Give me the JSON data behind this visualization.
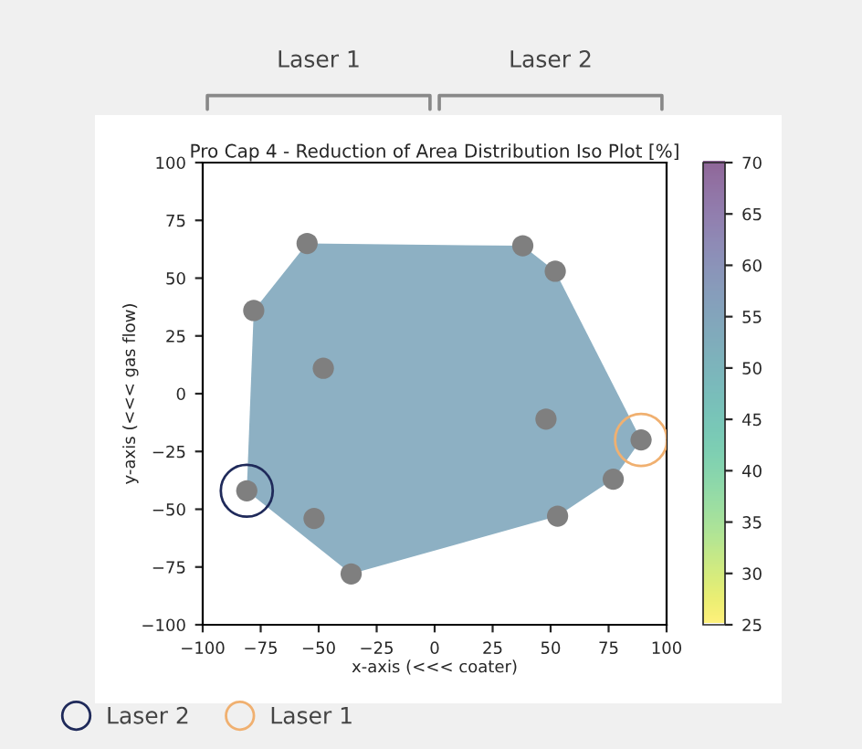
{
  "chart_data": {
    "type": "scatter",
    "title": "Pro Cap 4 - Reduction of Area Distribution Iso Plot [%]",
    "xlabel": "x-axis (<<< coater)",
    "ylabel": "y-axis (<<< gas flow)",
    "xlim": [
      -100,
      100
    ],
    "ylim": [
      -100,
      100
    ],
    "xticks": [
      -100,
      -75,
      -50,
      -25,
      0,
      25,
      50,
      75,
      100
    ],
    "yticks": [
      -100,
      -75,
      -50,
      -25,
      0,
      25,
      50,
      75,
      100
    ],
    "clim": [
      25,
      70
    ],
    "cticks": [
      25,
      30,
      35,
      40,
      45,
      50,
      55,
      60,
      65,
      70
    ],
    "grid": false,
    "legend": "bottom left",
    "annotations": [
      "Laser 1",
      "Laser 2"
    ],
    "series": [
      {
        "type": "area",
        "color": "#8db0c3",
        "x": [
          -55,
          38,
          52,
          89,
          77,
          53,
          -36,
          -81,
          -78
        ],
        "values": [
          65,
          64,
          53,
          -20,
          -37,
          -53,
          -78,
          -42,
          36
        ]
      },
      {
        "color": "#7f7f7f",
        "marker": "circle",
        "x": [
          -55,
          38,
          52,
          -78,
          -48,
          48,
          89,
          77,
          53,
          -81,
          -52,
          -36
        ],
        "values": [
          65,
          64,
          53,
          36,
          11,
          -11,
          -20,
          -37,
          -53,
          -42,
          -54,
          -78
        ]
      },
      {
        "name": "Laser 2",
        "color": "#1f2a5a",
        "marker": "circle",
        "x": [
          -81
        ],
        "values": [
          -42
        ]
      },
      {
        "name": "Laser 1",
        "color": "#f0b070",
        "marker": "circle",
        "x": [
          89
        ],
        "values": [
          -20
        ]
      }
    ]
  }
}
